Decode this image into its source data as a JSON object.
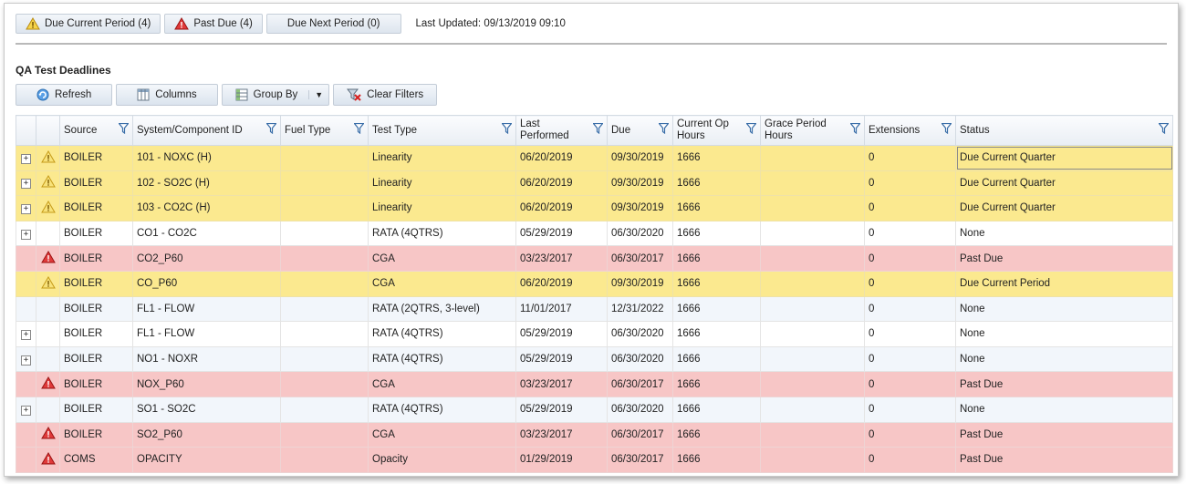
{
  "header": {
    "buttons": [
      {
        "label": "Due Current Period (4)",
        "icon": "warning-icon"
      },
      {
        "label": "Past Due (4)",
        "icon": "alert-icon"
      },
      {
        "label": "Due Next Period (0)",
        "icon": ""
      }
    ],
    "last_updated": "Last Updated:  09/13/2019 09:10"
  },
  "section_title": "QA Test Deadlines",
  "toolbar": {
    "refresh": "Refresh",
    "columns": "Columns",
    "group_by": "Group By",
    "clear_filters": "Clear Filters"
  },
  "columns": [
    "Source",
    "System/Component ID",
    "Fuel Type",
    "Test Type",
    "Last Performed",
    "Due",
    "Current Op Hours",
    "Grace Period Hours",
    "Extensions",
    "Status"
  ],
  "rows": [
    {
      "expand": "+",
      "icon": "warning",
      "source": "BOILER",
      "system": "101 - NOXC (H)",
      "fuel": "",
      "test": "Linearity",
      "last": "06/20/2019",
      "due": "09/30/2019",
      "hours": "1666",
      "grace": "",
      "ext": "0",
      "status": "Due Current Quarter",
      "color": "yellow"
    },
    {
      "expand": "+",
      "icon": "warning",
      "source": "BOILER",
      "system": "102 - SO2C (H)",
      "fuel": "",
      "test": "Linearity",
      "last": "06/20/2019",
      "due": "09/30/2019",
      "hours": "1666",
      "grace": "",
      "ext": "0",
      "status": "Due Current Quarter",
      "color": "yellow"
    },
    {
      "expand": "+",
      "icon": "warning",
      "source": "BOILER",
      "system": "103 - CO2C (H)",
      "fuel": "",
      "test": "Linearity",
      "last": "06/20/2019",
      "due": "09/30/2019",
      "hours": "1666",
      "grace": "",
      "ext": "0",
      "status": "Due Current Quarter",
      "color": "yellow"
    },
    {
      "expand": "+",
      "icon": "",
      "source": "BOILER",
      "system": "CO1 - CO2C",
      "fuel": "",
      "test": "RATA (4QTRS)",
      "last": "05/29/2019",
      "due": "06/30/2020",
      "hours": "1666",
      "grace": "",
      "ext": "0",
      "status": "None",
      "color": "white"
    },
    {
      "expand": "",
      "icon": "alert",
      "source": "BOILER",
      "system": "CO2_P60",
      "fuel": "",
      "test": "CGA",
      "last": "03/23/2017",
      "due": "06/30/2017",
      "hours": "1666",
      "grace": "",
      "ext": "0",
      "status": "Past Due",
      "color": "red"
    },
    {
      "expand": "",
      "icon": "warning",
      "source": "BOILER",
      "system": "CO_P60",
      "fuel": "",
      "test": "CGA",
      "last": "06/20/2019",
      "due": "09/30/2019",
      "hours": "1666",
      "grace": "",
      "ext": "0",
      "status": "Due Current Period",
      "color": "yellow"
    },
    {
      "expand": "",
      "icon": "",
      "source": "BOILER",
      "system": "FL1 - FLOW",
      "fuel": "",
      "test": "RATA (2QTRS, 3-level)",
      "last": "11/01/2017",
      "due": "12/31/2022",
      "hours": "1666",
      "grace": "",
      "ext": "0",
      "status": "None",
      "color": "blue"
    },
    {
      "expand": "+",
      "icon": "",
      "source": "BOILER",
      "system": "FL1 - FLOW",
      "fuel": "",
      "test": "RATA (4QTRS)",
      "last": "05/29/2019",
      "due": "06/30/2020",
      "hours": "1666",
      "grace": "",
      "ext": "0",
      "status": "None",
      "color": "white"
    },
    {
      "expand": "+",
      "icon": "",
      "source": "BOILER",
      "system": "NO1 - NOXR",
      "fuel": "",
      "test": "RATA (4QTRS)",
      "last": "05/29/2019",
      "due": "06/30/2020",
      "hours": "1666",
      "grace": "",
      "ext": "0",
      "status": "None",
      "color": "blue"
    },
    {
      "expand": "",
      "icon": "alert",
      "source": "BOILER",
      "system": "NOX_P60",
      "fuel": "",
      "test": "CGA",
      "last": "03/23/2017",
      "due": "06/30/2017",
      "hours": "1666",
      "grace": "",
      "ext": "0",
      "status": "Past Due",
      "color": "red"
    },
    {
      "expand": "+",
      "icon": "",
      "source": "BOILER",
      "system": "SO1 - SO2C",
      "fuel": "",
      "test": "RATA (4QTRS)",
      "last": "05/29/2019",
      "due": "06/30/2020",
      "hours": "1666",
      "grace": "",
      "ext": "0",
      "status": "None",
      "color": "blue"
    },
    {
      "expand": "",
      "icon": "alert",
      "source": "BOILER",
      "system": "SO2_P60",
      "fuel": "",
      "test": "CGA",
      "last": "03/23/2017",
      "due": "06/30/2017",
      "hours": "1666",
      "grace": "",
      "ext": "0",
      "status": "Past Due",
      "color": "red"
    },
    {
      "expand": "",
      "icon": "alert",
      "source": "COMS",
      "system": "OPACITY",
      "fuel": "",
      "test": "Opacity",
      "last": "01/29/2019",
      "due": "06/30/2017",
      "hours": "1666",
      "grace": "",
      "ext": "0",
      "status": "Past Due",
      "color": "red"
    }
  ]
}
